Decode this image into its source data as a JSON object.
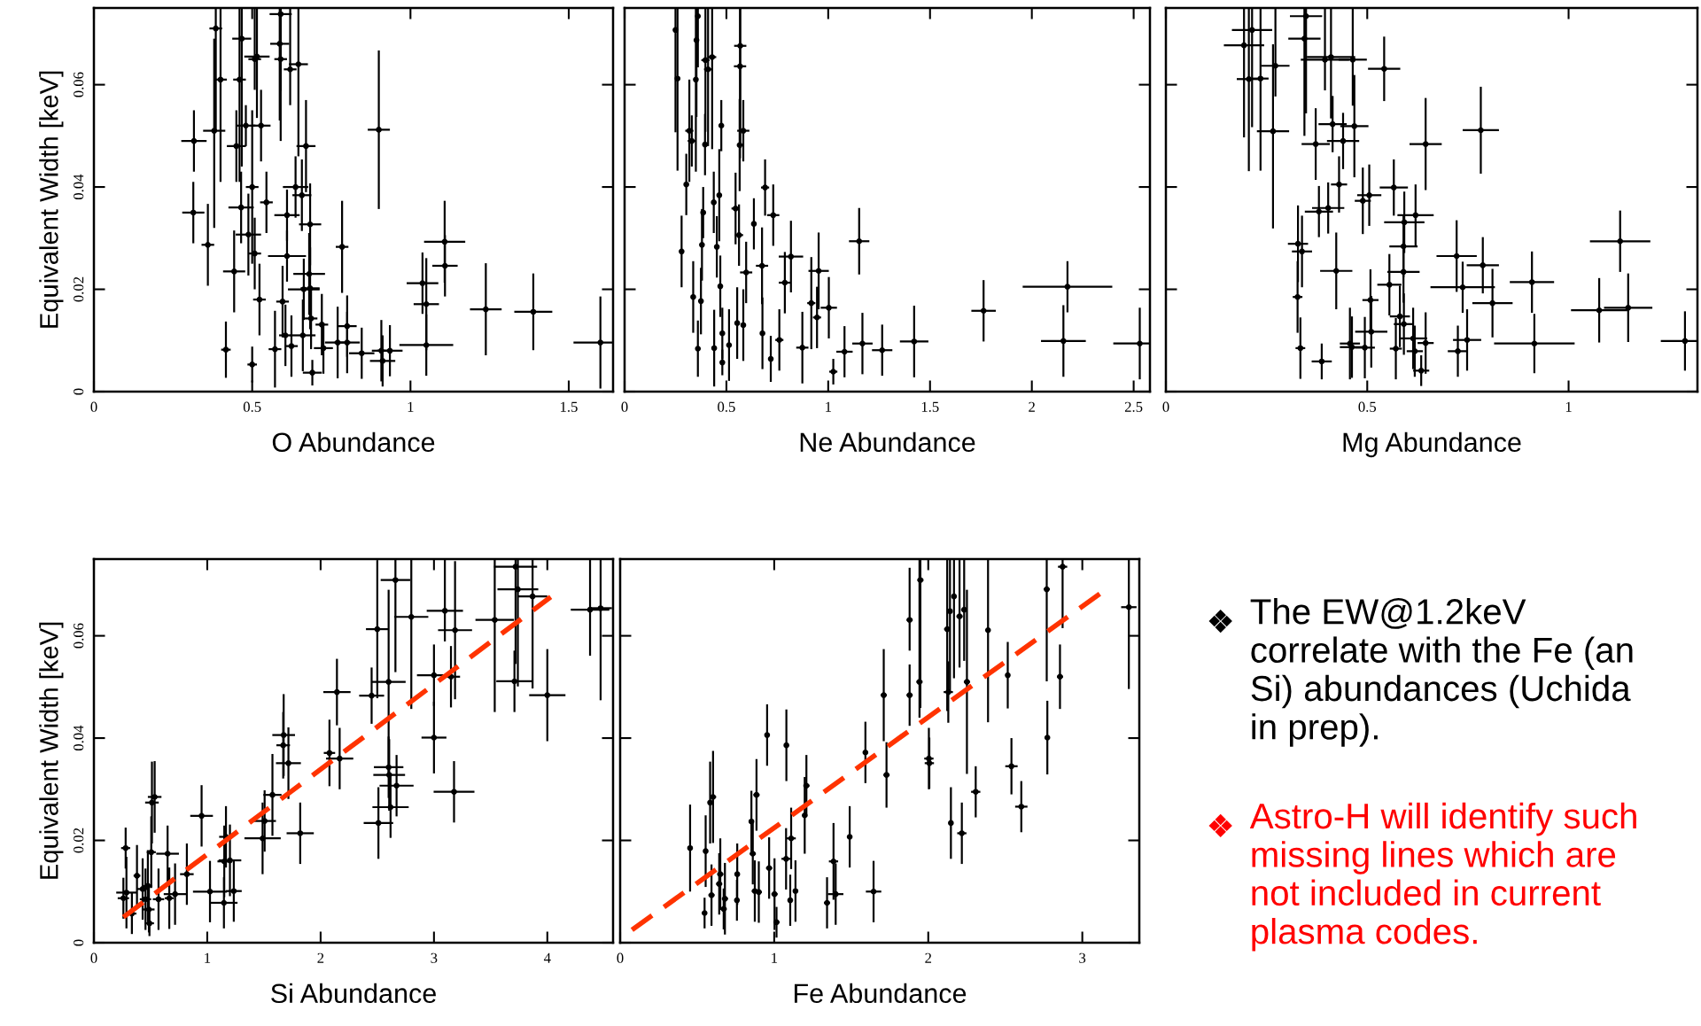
{
  "chart_data": [
    {
      "type": "scatter",
      "xlabel": "O Abundance",
      "ylabel": "Equivalent Width [keV]",
      "xlim": [
        0,
        1.64
      ],
      "ylim": [
        0,
        0.075
      ],
      "xticks": [
        0,
        0.5,
        1,
        1.5
      ],
      "yticks": [
        0,
        0.02,
        0.04,
        0.06
      ],
      "marker": "circle",
      "series": [
        {
          "color": "#000000",
          "x": [
            0.385,
            0.316,
            0.314,
            0.36,
            0.4,
            0.38,
            0.467,
            0.46,
            0.515,
            0.508,
            0.45,
            0.48,
            0.528,
            0.5,
            0.465,
            0.545,
            0.443,
            0.488,
            0.508,
            0.59,
            0.587,
            0.59,
            0.62,
            0.646,
            0.67,
            0.637,
            0.657,
            0.683,
            0.61,
            0.61,
            0.68,
            0.663,
            0.683,
            0.523,
            0.596,
            0.417,
            0.5,
            0.572,
            0.605,
            0.624,
            0.66,
            0.686,
            0.72,
            0.725,
            0.69,
            0.77,
            0.8,
            0.8,
            0.784,
            0.846,
            0.9,
            0.908,
            0.912,
            0.935,
            1.05,
            1.038,
            1.05,
            1.108,
            1.109,
            1.238,
            1.388,
            1.6
          ],
          "values": [
            0.071,
            0.049,
            0.035,
            0.0287,
            0.061,
            0.051,
            0.069,
            0.061,
            0.0655,
            0.065,
            0.048,
            0.052,
            0.052,
            0.04,
            0.036,
            0.037,
            0.0235,
            0.0307,
            0.027,
            0.0738,
            0.068,
            0.065,
            0.063,
            0.064,
            0.048,
            0.04,
            0.0384,
            0.0327,
            0.0345,
            0.0265,
            0.023,
            0.02,
            0.0202,
            0.018,
            0.0176,
            0.0082,
            0.0053,
            0.0083,
            0.011,
            0.0089,
            0.011,
            0.0143,
            0.0131,
            0.0085,
            0.0037,
            0.0096,
            0.0096,
            0.0128,
            0.0283,
            0.0075,
            0.0512,
            0.008,
            0.006,
            0.008,
            0.0091,
            0.0212,
            0.0171,
            0.0293,
            0.0246,
            0.0161,
            0.0156,
            0.0096
          ],
          "errors": [
            [
              0.051,
              0.075
            ],
            0.006,
            0.006,
            0.008,
            [
              0.041,
              0.075
            ],
            [
              0.032,
              0.069
            ],
            [
              0.044,
              0.075
            ],
            [
              0.041,
              0.075
            ],
            [
              0.0535,
              0.075
            ],
            [
              0.059,
              0.075
            ],
            0.007,
            0.004,
            0.007,
            0.015,
            0.007,
            0.006,
            0.008,
            0.008,
            0.007,
            [
              0.0588,
              0.075
            ],
            [
              0.053,
              0.075
            ],
            [
              0.049,
              0.075
            ],
            [
              0.056,
              0.075
            ],
            [
              0.046,
              0.075
            ],
            0.009,
            0.006,
            0.007,
            0.008,
            0.005,
            0.005,
            0.008,
            0.006,
            0.008,
            0.007,
            0.007,
            0.0055,
            0.0035,
            0.0075,
            0.006,
            0.006,
            0.007,
            0.006,
            0.006,
            0.005,
            0.0025,
            0.007,
            0.006,
            0.006,
            0.009,
            0.005,
            0.0155,
            0.006,
            0.005,
            0.005,
            0.006,
            0.006,
            0.009,
            0.008,
            0.006,
            0.009,
            0.0075,
            0.009
          ],
          "xerrors": [
            0.02,
            0.04,
            0.035,
            0.02,
            0.02,
            0.035,
            0.03,
            0.02,
            0.04,
            0.02,
            0.03,
            0.03,
            0.03,
            0.02,
            0.04,
            0.02,
            0.035,
            0.04,
            0.02,
            0.035,
            0.03,
            0.02,
            0.02,
            0.03,
            0.03,
            0.04,
            0.03,
            0.035,
            0.04,
            0.06,
            0.05,
            0.05,
            0.03,
            0.02,
            0.02,
            0.015,
            0.015,
            0.02,
            0.02,
            0.02,
            0.04,
            0.02,
            0.02,
            0.03,
            0.03,
            0.04,
            0.04,
            0.03,
            0.02,
            0.04,
            0.035,
            0.03,
            0.04,
            0.04,
            0.085,
            0.05,
            0.04,
            0.065,
            0.04,
            0.05,
            0.06,
            0.085
          ]
        }
      ]
    },
    {
      "type": "scatter",
      "xlabel": "Ne Abundance",
      "xlim": [
        0,
        2.58
      ],
      "ylim": [
        0,
        0.075
      ],
      "xticks": [
        0,
        0.5,
        1,
        1.5,
        2,
        2.5
      ],
      "yticks": [
        0,
        0.02,
        0.04,
        0.06
      ],
      "tick_labels": "x",
      "marker": "circle",
      "series": [
        {
          "color": "#000000",
          "x": [
            0.25,
            0.26,
            0.28,
            0.303,
            0.318,
            0.33,
            0.337,
            0.36,
            0.353,
            0.35,
            0.36,
            0.375,
            0.38,
            0.386,
            0.395,
            0.397,
            0.41,
            0.43,
            0.438,
            0.44,
            0.453,
            0.465,
            0.47,
            0.475,
            0.48,
            0.48,
            0.513,
            0.545,
            0.562,
            0.565,
            0.567,
            0.568,
            0.583,
            0.553,
            0.583,
            0.597,
            0.635,
            0.675,
            0.677,
            0.69,
            0.718,
            0.73,
            0.76,
            0.787,
            0.817,
            0.873,
            0.917,
            0.945,
            0.953,
            1.003,
            1.025,
            1.08,
            1.168,
            1.152,
            1.265,
            1.422,
            1.763,
            2.175,
            2.155,
            2.53
          ],
          "values": [
            0.0707,
            0.0612,
            0.0274,
            0.0405,
            0.051,
            0.049,
            0.0185,
            0.0734,
            0.0687,
            0.061,
            0.0084,
            0.0177,
            0.0287,
            0.035,
            0.0483,
            0.0648,
            0.063,
            0.0654,
            0.037,
            0.0085,
            0.0283,
            0.0384,
            0.0206,
            0.052,
            0.0057,
            0.0114,
            0.0091,
            0.0358,
            0.0306,
            0.0482,
            0.0636,
            0.0676,
            0.051,
            0.0134,
            0.013,
            0.0233,
            0.0328,
            0.0246,
            0.0114,
            0.0399,
            0.0064,
            0.0345,
            0.0101,
            0.0213,
            0.0264,
            0.0086,
            0.0173,
            0.0145,
            0.0236,
            0.0164,
            0.0039,
            0.0078,
            0.0094,
            0.0294,
            0.0081,
            0.0098,
            0.0158,
            0.0205,
            0.0099,
            0.0094
          ],
          "errors": [
            [
              0.0507,
              0.075
            ],
            [
              0.0432,
              0.075
            ],
            0.007,
            0.006,
            0.01,
            0.005,
            0.007,
            [
              0.0634,
              0.075
            ],
            [
              0.0537,
              0.075
            ],
            [
              0.043,
              0.075
            ],
            0.0055,
            0.0065,
            0.007,
            0.005,
            0.006,
            [
              0.0508,
              0.075
            ],
            [
              0.048,
              0.075
            ],
            [
              0.0474,
              0.075
            ],
            0.006,
            0.0075,
            0.006,
            0.009,
            0.006,
            0.005,
            0.0025,
            0.005,
            0.007,
            0.007,
            0.006,
            0.009,
            [
              0.0456,
              0.075
            ],
            [
              0.0476,
              0.075
            ],
            0.006,
            0.007,
            0.007,
            0.006,
            0.005,
            0.0075,
            0.007,
            0.0055,
            0.0045,
            0.006,
            0.006,
            0.006,
            0.007,
            0.007,
            0.009,
            0.006,
            0.0075,
            0.006,
            0.0025,
            0.005,
            0.006,
            0.0065,
            0.005,
            0.007,
            0.006,
            0.005,
            0.007,
            0.007
          ],
          "xerrors": [
            0.01,
            0.01,
            0.01,
            0.01,
            0.02,
            0.02,
            0.01,
            0.01,
            0.01,
            0.01,
            0.01,
            0.01,
            0.01,
            0.01,
            0.01,
            0.02,
            0.02,
            0.02,
            0.01,
            0.01,
            0.01,
            0.01,
            0.01,
            0.01,
            0.01,
            0.01,
            0.01,
            0.02,
            0.02,
            0.01,
            0.03,
            0.03,
            0.03,
            0.01,
            0.01,
            0.03,
            0.01,
            0.03,
            0.01,
            0.02,
            0.01,
            0.03,
            0.02,
            0.03,
            0.06,
            0.03,
            0.02,
            0.02,
            0.05,
            0.04,
            0.02,
            0.04,
            0.05,
            0.05,
            0.05,
            0.07,
            0.06,
            0.22,
            0.11,
            0.13
          ]
        }
      ]
    },
    {
      "type": "scatter",
      "xlabel": "Mg Abundance",
      "xlim": [
        0,
        1.32
      ],
      "ylim": [
        0,
        0.075
      ],
      "xticks": [
        0,
        0.5,
        1
      ],
      "yticks": [
        0,
        0.02,
        0.04,
        0.06
      ],
      "tick_labels": "x",
      "marker": "circle",
      "series": [
        {
          "color": "#000000",
          "x": [
            0.194,
            0.214,
            0.206,
            0.235,
            0.272,
            0.266,
            0.348,
            0.344,
            0.395,
            0.41,
            0.464,
            0.542,
            0.372,
            0.414,
            0.44,
            0.468,
            0.43,
            0.403,
            0.38,
            0.489,
            0.505,
            0.566,
            0.592,
            0.62,
            0.59,
            0.645,
            0.782,
            0.328,
            0.338,
            0.327,
            0.334,
            0.423,
            0.387,
            0.457,
            0.462,
            0.494,
            0.51,
            0.508,
            0.555,
            0.571,
            0.581,
            0.59,
            0.591,
            0.614,
            0.618,
            0.634,
            0.645,
            0.722,
            0.725,
            0.737,
            0.748,
            0.787,
            0.811,
            0.909,
            0.915,
            1.076,
            1.128,
            1.148,
            1.289
          ],
          "values": [
            0.0677,
            0.0707,
            0.0611,
            0.0612,
            0.0637,
            0.0509,
            0.0734,
            0.069,
            0.0649,
            0.0654,
            0.0649,
            0.0631,
            0.0484,
            0.0523,
            0.049,
            0.0519,
            0.0405,
            0.0359,
            0.0352,
            0.0373,
            0.0384,
            0.0399,
            0.0331,
            0.0345,
            0.0284,
            0.0484,
            0.0511,
            0.0289,
            0.0274,
            0.0185,
            0.0085,
            0.0236,
            0.0059,
            0.0094,
            0.0087,
            0.0086,
            0.0117,
            0.0179,
            0.0209,
            0.0084,
            0.0147,
            0.0234,
            0.0132,
            0.0104,
            0.0079,
            0.0041,
            0.0095,
            0.0265,
            0.0079,
            0.0204,
            0.0101,
            0.0247,
            0.0173,
            0.0214,
            0.0094,
            0.0159,
            0.0294,
            0.0164,
            0.0099
          ],
          "errors": [
            [
              0.0497,
              0.075
            ],
            [
              0.0517,
              0.075
            ],
            [
              0.0431,
              0.075
            ],
            [
              0.0432,
              0.075
            ],
            [
              0.0577,
              0.075
            ],
            [
              0.0319,
              0.0679
            ],
            [
              0.0544,
              0.075
            ],
            [
              0.05,
              0.075
            ],
            [
              0.0589,
              0.075
            ],
            [
              0.0534,
              0.075
            ],
            [
              0.0559,
              0.075
            ],
            0.0063,
            0.007,
            0.0055,
            0.0055,
            0.01,
            0.0055,
            0.005,
            0.005,
            0.0065,
            0.006,
            0.0055,
            0.006,
            0.006,
            0.006,
            0.009,
            0.0085,
            0.0075,
            0.007,
            0.007,
            0.006,
            0.0075,
            0.0035,
            0.007,
            0.006,
            0.006,
            0.007,
            0.006,
            0.006,
            0.006,
            0.006,
            0.006,
            0.006,
            0.006,
            0.005,
            0.003,
            0.006,
            0.007,
            0.005,
            0.005,
            0.006,
            0.0055,
            0.0067,
            0.006,
            0.0058,
            0.0063,
            0.006,
            0.0067,
            0.0058
          ],
          "xerrors": [
            0.05,
            0.05,
            0.03,
            0.02,
            0.035,
            0.04,
            0.04,
            0.04,
            0.06,
            0.06,
            0.035,
            0.04,
            0.035,
            0.035,
            0.04,
            0.035,
            0.02,
            0.04,
            0.035,
            0.02,
            0.03,
            0.035,
            0.05,
            0.045,
            0.035,
            0.04,
            0.045,
            0.025,
            0.025,
            0.012,
            0.012,
            0.04,
            0.025,
            0.025,
            0.03,
            0.025,
            0.04,
            0.02,
            0.03,
            0.015,
            0.025,
            0.04,
            0.025,
            0.035,
            0.02,
            0.02,
            0.02,
            0.05,
            0.025,
            0.08,
            0.035,
            0.04,
            0.05,
            0.055,
            0.1,
            0.07,
            0.075,
            0.06,
            [
              1.229,
              1.32
            ]
          ]
        }
      ]
    },
    {
      "type": "scatter",
      "xlabel": "Si Abundance",
      "ylabel": "Equivalent Width [keV]",
      "xlim": [
        0,
        4.58
      ],
      "ylim": [
        0,
        0.075
      ],
      "xticks": [
        0,
        1,
        2,
        3,
        4
      ],
      "yticks": [
        0,
        0.02,
        0.04,
        0.06
      ],
      "series": [
        {
          "color": "#000000",
          "marker": "circle",
          "x": [
            0.26,
            0.28,
            0.287,
            0.335,
            0.38,
            0.43,
            0.455,
            0.476,
            0.485,
            0.512,
            0.536,
            0.506,
            0.49,
            0.57,
            0.65,
            0.665,
            0.716,
            0.82,
            0.95,
            1.024,
            1.147,
            1.165,
            1.15,
            1.234,
            1.2,
            1.488,
            1.506,
            1.575,
            1.67,
            1.674,
            1.716,
            1.82,
            2.078,
            2.144,
            2.168,
            2.45,
            2.5,
            2.6,
            2.6,
            2.605,
            2.67,
            2.617,
            2.51,
            2.66,
            2.8,
            3.0,
            3.0,
            3.096,
            3.15,
            3.186,
            3.177,
            3.536,
            3.71,
            3.72,
            3.74,
            3.87,
            4.0,
            4.377,
            4.47
          ],
          "values": [
            0.0087,
            0.0185,
            0.0098,
            0.0057,
            0.0131,
            0.0105,
            0.0085,
            0.0111,
            0.0065,
            0.0274,
            0.0285,
            0.0177,
            0.0038,
            0.0085,
            0.0174,
            0.0087,
            0.0095,
            0.0134,
            0.0248,
            0.01,
            0.0078,
            0.0207,
            0.0159,
            0.0101,
            0.0161,
            0.0204,
            0.0238,
            0.0289,
            0.0386,
            0.0406,
            0.0351,
            0.0214,
            0.0371,
            0.049,
            0.036,
            0.0483,
            0.0613,
            0.051,
            0.0343,
            0.0328,
            0.0307,
            0.0265,
            0.0234,
            0.0709,
            0.0637,
            0.0523,
            0.0401,
            0.0649,
            0.052,
            0.0611,
            0.0295,
            0.0631,
            0.0511,
            0.0735,
            0.0691,
            0.0677,
            0.0484,
            0.0651,
            0.0654
          ],
          "errors": [
            0.004,
            0.004,
            0.007,
            0.004,
            0.006,
            0.006,
            0.006,
            0.007,
            0.0045,
            0.008,
            0.007,
            0.007,
            0.0025,
            0.006,
            0.0055,
            0.006,
            0.006,
            0.006,
            0.006,
            0.006,
            0.005,
            0.006,
            0.007,
            0.006,
            0.007,
            0.007,
            0.006,
            0.008,
            0.0065,
            0.008,
            0.007,
            0.006,
            0.0065,
            0.0065,
            0.006,
            0.0055,
            0.0135,
            0.018,
            0.006,
            0.007,
            0.006,
            0.006,
            0.007,
            [
              0.0529,
              0.075
            ],
            [
              0.0457,
              0.075
            ],
            0.006,
            0.007,
            [
              0.0589,
              0.075
            ],
            0.006,
            0.0135,
            0.006,
            [
              0.0451,
              0.075
            ],
            0.006,
            [
              0.0545,
              0.075
            ],
            [
              0.0501,
              0.075
            ],
            [
              0.0497,
              0.075
            ],
            0.009,
            [
              0.0561,
              0.075
            ],
            [
              0.0474,
              0.075
            ]
          ],
          "xerrors": [
            0.05,
            0.04,
            0.09,
            0.04,
            0.03,
            0.05,
            0.05,
            0.04,
            0.05,
            0.06,
            0.06,
            0.04,
            0.04,
            0.05,
            0.1,
            0.04,
            0.1,
            0.06,
            0.1,
            0.15,
            0.12,
            0.06,
            0.06,
            0.07,
            0.1,
            0.16,
            0.1,
            0.08,
            0.06,
            0.1,
            0.11,
            0.12,
            0.05,
            0.12,
            0.12,
            0.11,
            0.1,
            0.15,
            0.13,
            0.14,
            0.15,
            0.16,
            0.13,
            0.13,
            0.15,
            0.15,
            0.11,
            0.16,
            0.08,
            0.15,
            0.18,
            0.17,
            0.16,
            0.19,
            0.18,
            0.13,
            0.16,
            0.17,
            0.1
          ]
        },
        {
          "type": "line",
          "color": "#ff3300",
          "line_style": "dashed",
          "x": [
            0.26,
            4.03
          ],
          "values": [
            0.005,
            0.0676
          ]
        }
      ]
    },
    {
      "type": "scatter",
      "xlabel": "Fe Abundance",
      "xlim": [
        0,
        3.37
      ],
      "ylim": [
        0,
        0.075
      ],
      "xticks": [
        0,
        1,
        2,
        3
      ],
      "yticks": [
        0,
        0.02,
        0.04,
        0.06
      ],
      "tick_labels": "x",
      "series": [
        {
          "color": "#000000",
          "marker": "circle",
          "x": [
            0.454,
            0.548,
            0.555,
            0.584,
            0.603,
            0.593,
            0.643,
            0.65,
            0.672,
            0.68,
            0.76,
            0.758,
            0.852,
            0.861,
            0.874,
            0.885,
            0.9,
            0.954,
            0.967,
            1.002,
            1.015,
            1.079,
            1.077,
            1.104,
            1.11,
            1.138,
            1.198,
            1.209,
            1.343,
            1.385,
            1.399,
            1.49,
            1.592,
            1.645,
            1.711,
            1.729,
            1.879,
            1.879,
            1.943,
            1.949,
            2.004,
            2.007,
            2.123,
            2.13,
            2.147,
            2.167,
            2.141,
            2.203,
            2.233,
            2.218,
            2.251,
            2.308,
            2.388,
            2.516,
            2.54,
            2.604,
            2.769,
            2.773,
            2.855,
            2.872,
            3.302
          ],
          "values": [
            0.0185,
            0.0058,
            0.0179,
            0.0274,
            0.0285,
            0.0093,
            0.0115,
            0.0134,
            0.0066,
            0.0086,
            0.0134,
            0.0083,
            0.0237,
            0.0174,
            0.0101,
            0.0289,
            0.0099,
            0.0406,
            0.0146,
            0.0095,
            0.004,
            0.0386,
            0.0164,
            0.0083,
            0.0204,
            0.0101,
            0.0249,
            0.0307,
            0.0078,
            0.0159,
            0.0095,
            0.0207,
            0.0372,
            0.01,
            0.0484,
            0.0328,
            0.0631,
            0.0484,
            0.051,
            0.0709,
            0.036,
            0.0351,
            0.0613,
            0.049,
            0.0234,
            0.0677,
            0.0648,
            0.0638,
            0.0651,
            0.0214,
            0.051,
            0.0295,
            0.0611,
            0.0523,
            0.0345,
            0.0266,
            0.0691,
            0.0401,
            0.052,
            0.0735,
            0.0656
          ],
          "errors": [
            0.0085,
            0.003,
            0.007,
            0.008,
            0.009,
            0.006,
            0.006,
            0.007,
            0.004,
            0.007,
            0.006,
            0.004,
            0.006,
            0.006,
            0.006,
            0.007,
            0.006,
            0.006,
            0.006,
            0.007,
            0.003,
            0.007,
            0.006,
            0.005,
            0.006,
            0.006,
            0.0075,
            0.006,
            0.005,
            0.0075,
            0.006,
            0.006,
            0.006,
            0.006,
            0.009,
            0.0064,
            [
              0.0571,
              0.0733
            ],
            0.006,
            [
              0.044,
              0.075
            ],
            [
              0.0459,
              0.075
            ],
            0.006,
            0.005,
            [
              0.0453,
              0.075
            ],
            0.006,
            0.007,
            [
              0.0517,
              0.075
            ],
            [
              0.0488,
              0.075
            ],
            [
              0.0538,
              0.075
            ],
            [
              0.0551,
              0.075
            ],
            0.006,
            0.018,
            0.005,
            [
              0.0431,
              0.075
            ],
            0.0065,
            0.0055,
            0.005,
            [
              0.0511,
              0.075
            ],
            0.0072,
            0.0063,
            [
              0.0615,
              0.075
            ],
            [
              0.0496,
              0.075
            ]
          ],
          "xerrors": [
            0.01,
            0.01,
            0.01,
            0.01,
            0.02,
            0.02,
            0.02,
            0.02,
            0.02,
            0.02,
            0.01,
            0.01,
            0.01,
            0.02,
            0.02,
            0.02,
            0.02,
            0.01,
            0.02,
            0.02,
            0.02,
            0.01,
            0.03,
            0.01,
            0.03,
            0.01,
            0.01,
            0.02,
            0.02,
            0.03,
            0.05,
            0.01,
            0.01,
            0.05,
            0.02,
            0.02,
            0.02,
            0.02,
            0.02,
            0.02,
            0.03,
            0.03,
            0.02,
            0.03,
            0.01,
            0.01,
            0.01,
            0.02,
            0.02,
            0.03,
            0.02,
            0.03,
            0.01,
            0.01,
            0.04,
            0.04,
            0.02,
            0.01,
            0.02,
            0.03,
            0.05
          ]
        },
        {
          "type": "line",
          "color": "#ff3300",
          "line_style": "dashed",
          "x": [
            0.077,
            3.137
          ],
          "values": [
            0.0025,
            0.0687
          ]
        }
      ]
    },
    {
      "type": "other",
      "annotations": [
        "The EW@1.2keV\ncorrelate with the Fe (an\nSi) abundances (Uchida\nin prep).",
        "Astro-H will identify such\nmissing lines which are\nnot included in current\nplasma codes."
      ],
      "colors": [
        "#000000",
        "#ff0000"
      ]
    }
  ]
}
